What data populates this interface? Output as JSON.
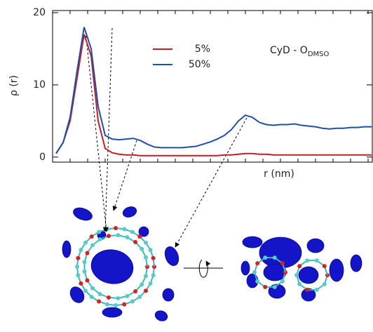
{
  "chart_data": {
    "type": "line",
    "ylabel": "ρ (r)",
    "xlabel": "r (nm)",
    "annotation": {
      "text": "CyD - O",
      "subscript": "DMSO"
    },
    "ylim": [
      -0.7,
      20.3
    ],
    "yticks": [
      0,
      10,
      20
    ],
    "legend": "upper-center",
    "series": [
      {
        "name": "5%",
        "color": "#c0202a",
        "values": [
          0.5,
          2,
          5,
          11,
          17,
          14,
          5,
          1.2,
          0.6,
          0.4,
          0.3,
          0.3,
          0.2,
          0.2,
          0.2,
          0.2,
          0.2,
          0.2,
          0.2,
          0.2,
          0.2,
          0.2,
          0.2,
          0.2,
          0.3,
          0.3,
          0.4,
          0.5,
          0.5,
          0.4,
          0.4,
          0.3,
          0.3,
          0.3,
          0.3,
          0.3,
          0.3,
          0.3,
          0.3,
          0.3,
          0.3,
          0.3,
          0.3,
          0.3,
          0.3,
          0.3
        ]
      },
      {
        "name": "50%",
        "color": "#1f4fa8",
        "values": [
          0.5,
          2,
          5.5,
          12,
          18,
          15,
          7,
          3,
          2.5,
          2.4,
          2.5,
          2.6,
          2.3,
          1.8,
          1.4,
          1.3,
          1.3,
          1.3,
          1.3,
          1.4,
          1.5,
          1.8,
          2.1,
          2.5,
          3,
          3.8,
          5,
          5.8,
          5.5,
          4.8,
          4.5,
          4.4,
          4.5,
          4.5,
          4.6,
          4.4,
          4.3,
          4.2,
          4,
          3.9,
          4,
          4,
          4.1,
          4.1,
          4.2,
          4.2
        ]
      }
    ]
  }
}
